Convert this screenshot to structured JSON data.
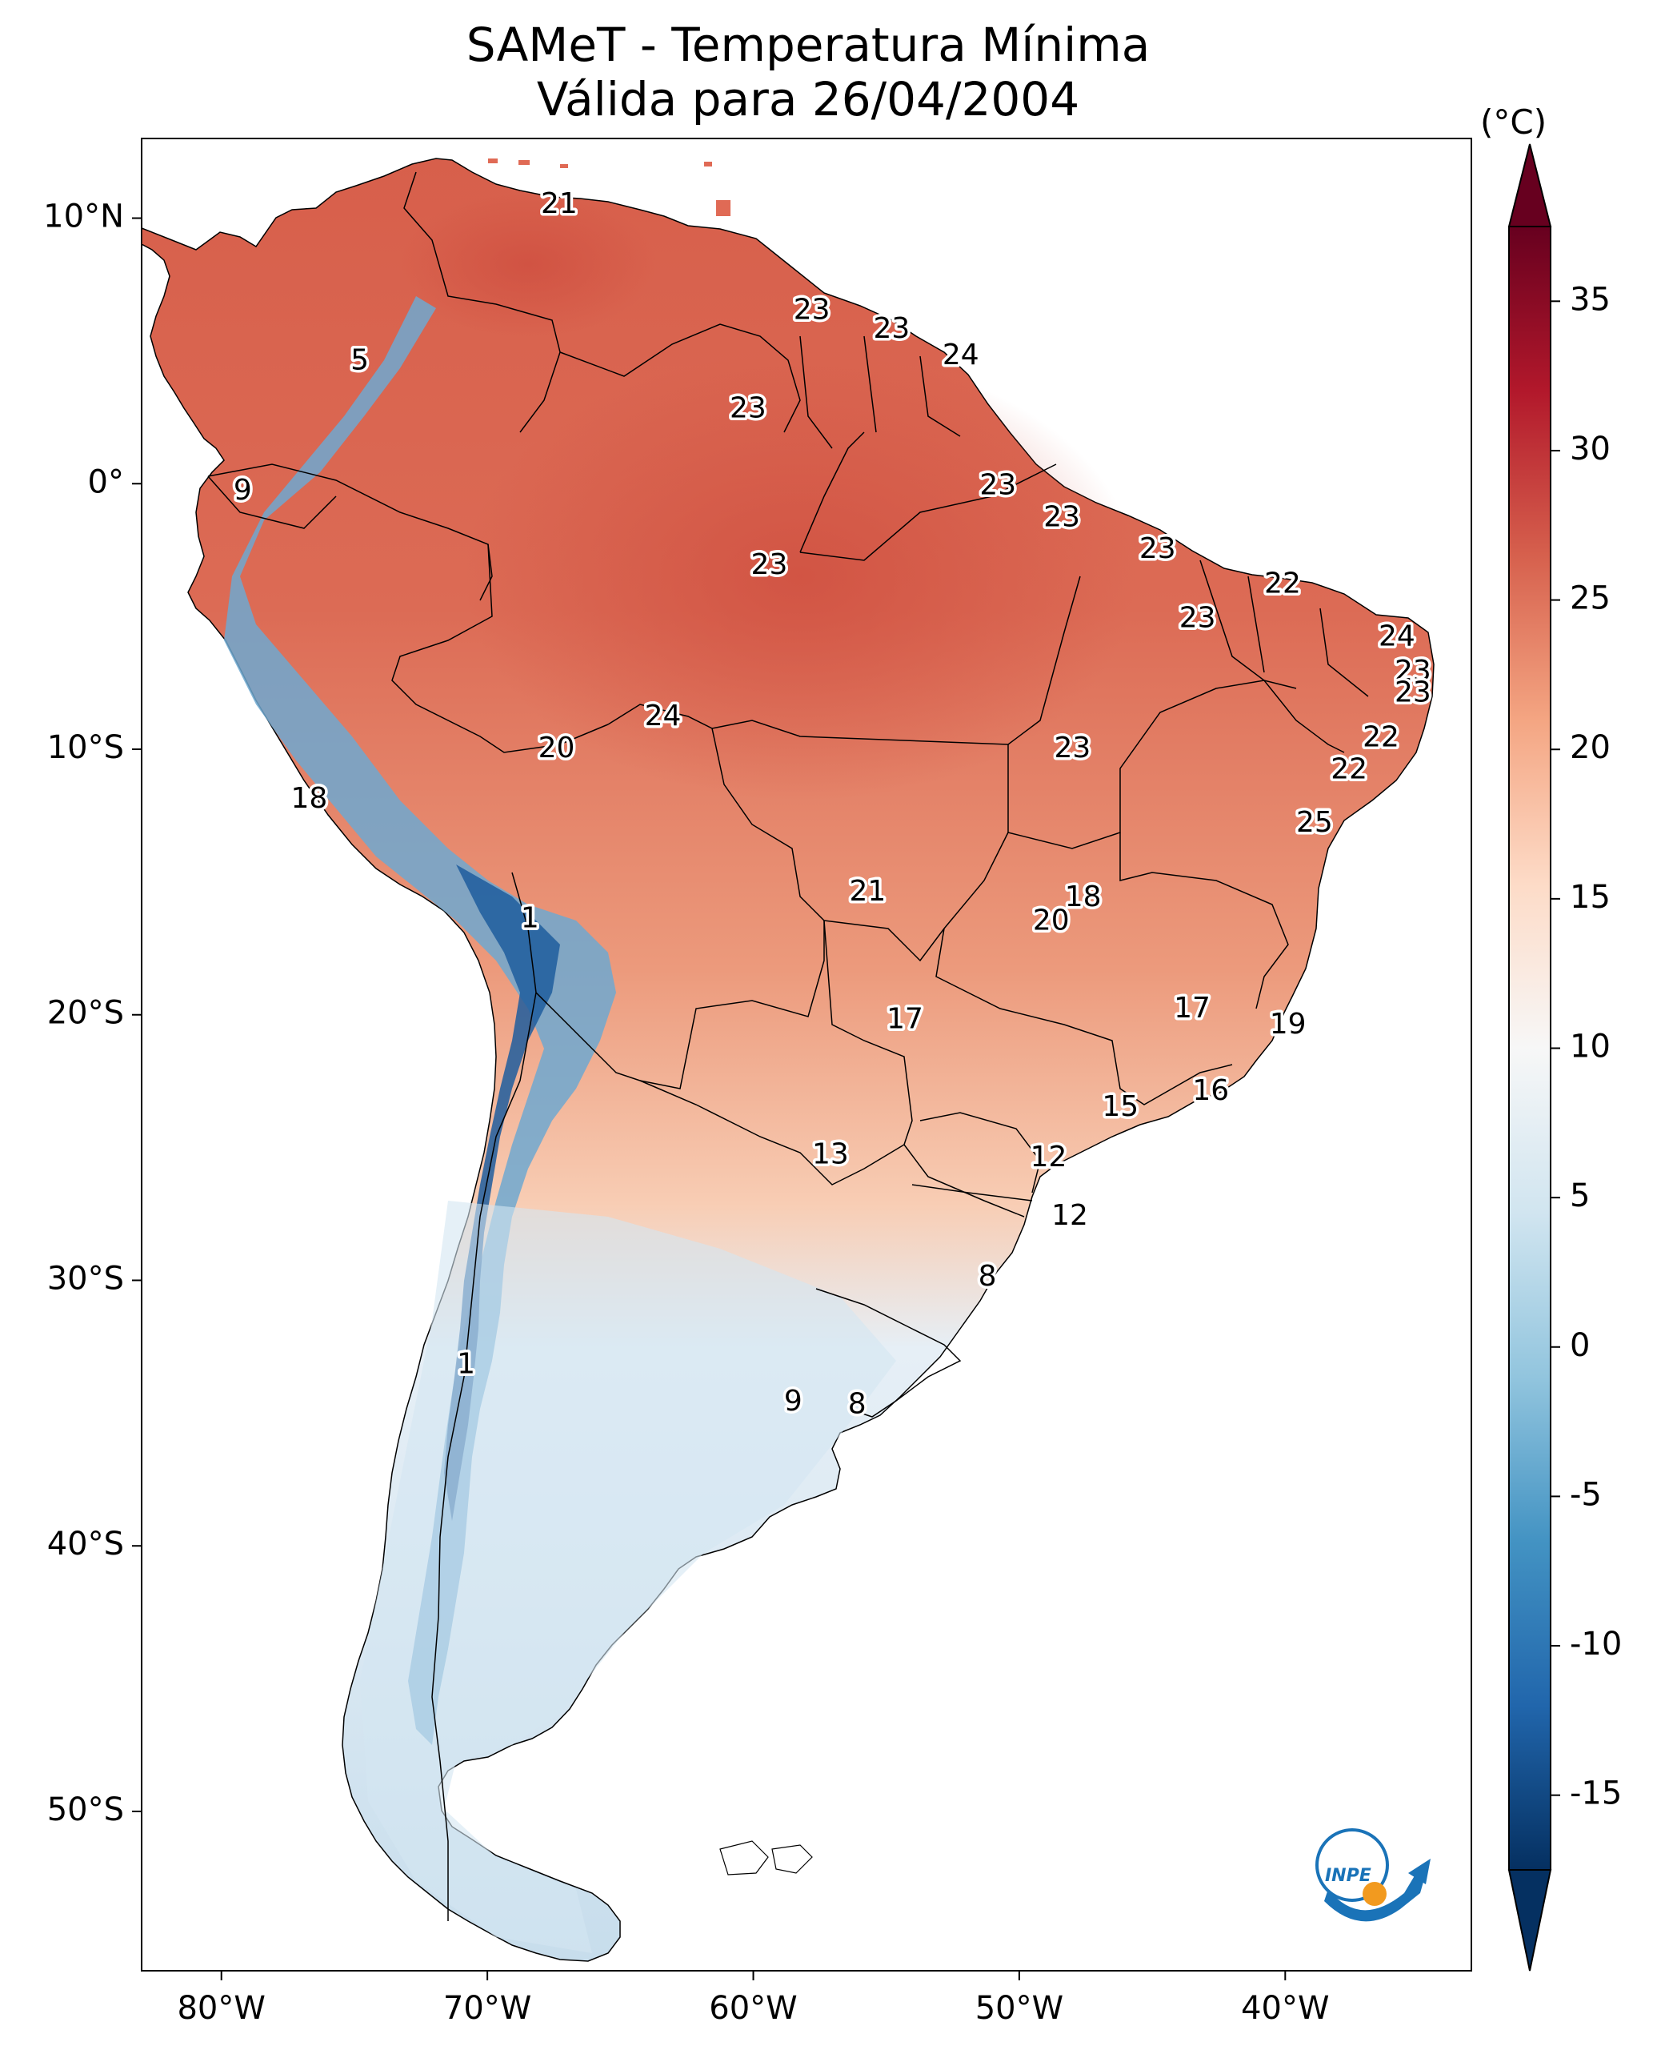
{
  "title": {
    "line1": "SAMeT - Temperatura Mínima",
    "line2": "Válida para 26/04/2004"
  },
  "map": {
    "region": "South America",
    "lon_range": [
      -83,
      -33
    ],
    "lat_range": [
      -56,
      13
    ],
    "lon_ticks": [
      "80°W",
      "70°W",
      "60°W",
      "50°W",
      "40°W"
    ],
    "lat_ticks": [
      "10°N",
      "0°",
      "10°S",
      "20°S",
      "30°S",
      "40°S",
      "50°S"
    ],
    "field": "minimum temperature"
  },
  "colorbar": {
    "unit": "(°C)",
    "ticks": [
      "35",
      "30",
      "25",
      "20",
      "15",
      "10",
      "5",
      "0",
      "-5",
      "-10",
      "-15"
    ],
    "colormap": "RdBu_r",
    "extend": "both"
  },
  "contour_labels": [
    {
      "text": "21",
      "lon": -67.3,
      "lat": 10.5
    },
    {
      "text": "23",
      "lon": -57.8,
      "lat": 6.5
    },
    {
      "text": "23",
      "lon": -54.8,
      "lat": 5.8
    },
    {
      "text": "24",
      "lon": -52.2,
      "lat": 4.8
    },
    {
      "text": "5",
      "lon": -74.8,
      "lat": 4.6
    },
    {
      "text": "23",
      "lon": -60.2,
      "lat": 2.8
    },
    {
      "text": "9",
      "lon": -79.2,
      "lat": -0.3
    },
    {
      "text": "23",
      "lon": -50.8,
      "lat": -0.1
    },
    {
      "text": "23",
      "lon": -48.4,
      "lat": -1.3
    },
    {
      "text": "23",
      "lon": -44.8,
      "lat": -2.5
    },
    {
      "text": "23",
      "lon": -59.4,
      "lat": -3.1
    },
    {
      "text": "22",
      "lon": -40.1,
      "lat": -3.8
    },
    {
      "text": "23",
      "lon": -43.3,
      "lat": -5.1
    },
    {
      "text": "24",
      "lon": -35.8,
      "lat": -5.8
    },
    {
      "text": "23",
      "lon": -35.2,
      "lat": -7.1
    },
    {
      "text": "23",
      "lon": -35.2,
      "lat": -7.9
    },
    {
      "text": "24",
      "lon": -63.4,
      "lat": -8.8
    },
    {
      "text": "22",
      "lon": -36.4,
      "lat": -9.6
    },
    {
      "text": "20",
      "lon": -67.4,
      "lat": -10.0
    },
    {
      "text": "23",
      "lon": -48.0,
      "lat": -10.0
    },
    {
      "text": "22",
      "lon": -37.6,
      "lat": -10.8
    },
    {
      "text": "18",
      "lon": -76.7,
      "lat": -11.9
    },
    {
      "text": "25",
      "lon": -38.9,
      "lat": -12.8
    },
    {
      "text": "21",
      "lon": -55.7,
      "lat": -15.4
    },
    {
      "text": "18",
      "lon": -47.6,
      "lat": -15.6
    },
    {
      "text": "20",
      "lon": -48.8,
      "lat": -16.5
    },
    {
      "text": "1",
      "lon": -68.4,
      "lat": -16.4
    },
    {
      "text": "17",
      "lon": -54.3,
      "lat": -20.2
    },
    {
      "text": "17",
      "lon": -43.5,
      "lat": -19.8
    },
    {
      "text": "19",
      "lon": -39.9,
      "lat": -20.4
    },
    {
      "text": "16",
      "lon": -42.8,
      "lat": -22.9
    },
    {
      "text": "15",
      "lon": -46.2,
      "lat": -23.5
    },
    {
      "text": "13",
      "lon": -57.1,
      "lat": -25.3
    },
    {
      "text": "12",
      "lon": -48.9,
      "lat": -25.4
    },
    {
      "text": "12",
      "lon": -48.1,
      "lat": -27.6
    },
    {
      "text": "8",
      "lon": -51.2,
      "lat": -29.9
    },
    {
      "text": "1",
      "lon": -70.8,
      "lat": -33.2
    },
    {
      "text": "9",
      "lon": -58.5,
      "lat": -34.6
    },
    {
      "text": "8",
      "lon": -56.1,
      "lat": -34.7
    }
  ],
  "logo": {
    "text": "INPE",
    "colors": {
      "blue": "#1a73b8",
      "orange": "#f29a1f"
    }
  },
  "colors": {
    "warm": "#d6604d",
    "cold": "#2166ac",
    "neutral": "#f7f7f7",
    "border": "#000000"
  }
}
